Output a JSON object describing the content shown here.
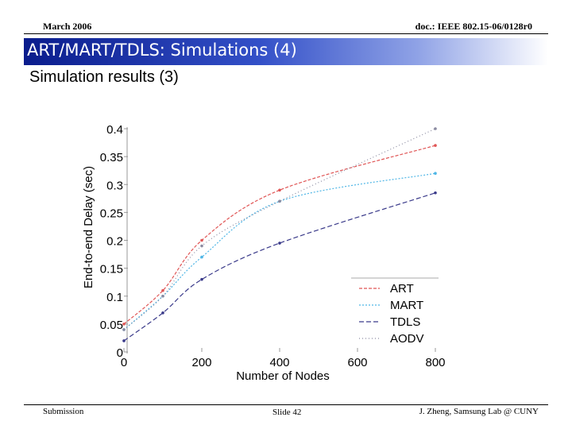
{
  "header": {
    "date": "March 2006",
    "doc": "doc.: IEEE 802.15-06/0128r0"
  },
  "slide": {
    "title": "ART/MART/TDLS: Simulations (4)",
    "subtitle": "Simulation results (3)"
  },
  "footer": {
    "left": "Submission",
    "center": "Slide 42",
    "right": "J. Zheng, Samsung Lab @ CUNY"
  },
  "colors": {
    "title_bar": "#1a30a8",
    "ART": "#e05555",
    "MART": "#4fb6e6",
    "TDLS": "#3a3a8a",
    "AODV": "#8a8aa0"
  },
  "chart_data": {
    "type": "line",
    "xlabel": "Number of Nodes",
    "ylabel": "End-to-end Delay (sec)",
    "x_ticks": [
      "0",
      "200",
      "400",
      "600",
      "800"
    ],
    "y_ticks": [
      "0",
      "0.05",
      "0.1",
      "0.15",
      "0.2",
      "0.25",
      "0.3",
      "0.35",
      "0.4"
    ],
    "xlim": [
      0,
      800
    ],
    "ylim": [
      0,
      0.4
    ],
    "legend": [
      "ART",
      "MART",
      "TDLS",
      "AODV"
    ],
    "x": [
      0,
      100,
      200,
      400,
      800
    ],
    "series": [
      {
        "name": "ART",
        "values": [
          0.05,
          0.11,
          0.2,
          0.29,
          0.37
        ]
      },
      {
        "name": "MART",
        "values": [
          0.04,
          0.1,
          0.17,
          0.27,
          0.32
        ]
      },
      {
        "name": "TDLS",
        "values": [
          0.02,
          0.07,
          0.13,
          0.195,
          0.285
        ]
      },
      {
        "name": "AODV",
        "values": [
          0.04,
          0.1,
          0.19,
          0.27,
          0.4
        ]
      }
    ]
  }
}
